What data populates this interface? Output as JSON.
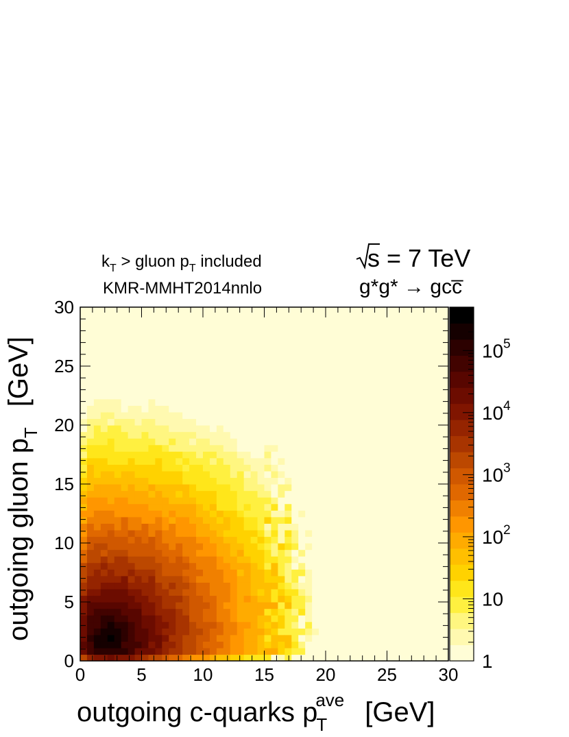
{
  "annotations": {
    "line1_main": "k",
    "line1_sub1": "T",
    "line1_mid": " > gluon p",
    "line1_sub2": "T",
    "line1_end": " included",
    "line2": "KMR-MMHT2014nnlo",
    "energy": "s = 7 TeV",
    "process": "g*g* → gcc̅"
  },
  "chart_data": {
    "type": "heatmap",
    "xlabel_main": "outgoing c-quarks p",
    "xlabel_sub": "T",
    "xlabel_sup": "ave",
    "xlabel_unit": "[GeV]",
    "ylabel_main": "outgoing gluon p",
    "ylabel_sub": "T",
    "ylabel_unit": "[GeV]",
    "xlim": [
      0,
      30
    ],
    "ylim": [
      0,
      30
    ],
    "x_ticks": [
      "0",
      "5",
      "10",
      "15",
      "20",
      "25",
      "30"
    ],
    "y_ticks": [
      "0",
      "5",
      "10",
      "15",
      "20",
      "25",
      "30"
    ],
    "z_scale": "log",
    "zlim": [
      1,
      500000
    ],
    "z_ticks": [
      {
        "value": 1,
        "base": "1",
        "exp": ""
      },
      {
        "value": 10,
        "base": "10",
        "exp": ""
      },
      {
        "value": 100,
        "base": "10",
        "exp": "2"
      },
      {
        "value": 1000,
        "base": "10",
        "exp": "3"
      },
      {
        "value": 10000,
        "base": "10",
        "exp": "4"
      },
      {
        "value": 100000,
        "base": "10",
        "exp": "5"
      }
    ],
    "colors": [
      "#fffdd6",
      "#fff9b0",
      "#fff680",
      "#fff040",
      "#ffe61a",
      "#ffd200",
      "#ffbf00",
      "#ffab00",
      "#ff9600",
      "#f08000",
      "#e06800",
      "#d05800",
      "#bc4800",
      "#a83400",
      "#952400",
      "#801500",
      "#6c0c00",
      "#580600",
      "#420300",
      "#2c0100",
      "#150000",
      "#000000"
    ],
    "peak": {
      "x": 2.3,
      "y": 2.0,
      "z": 500000
    },
    "grid": false,
    "legend": "color-bar-right"
  }
}
